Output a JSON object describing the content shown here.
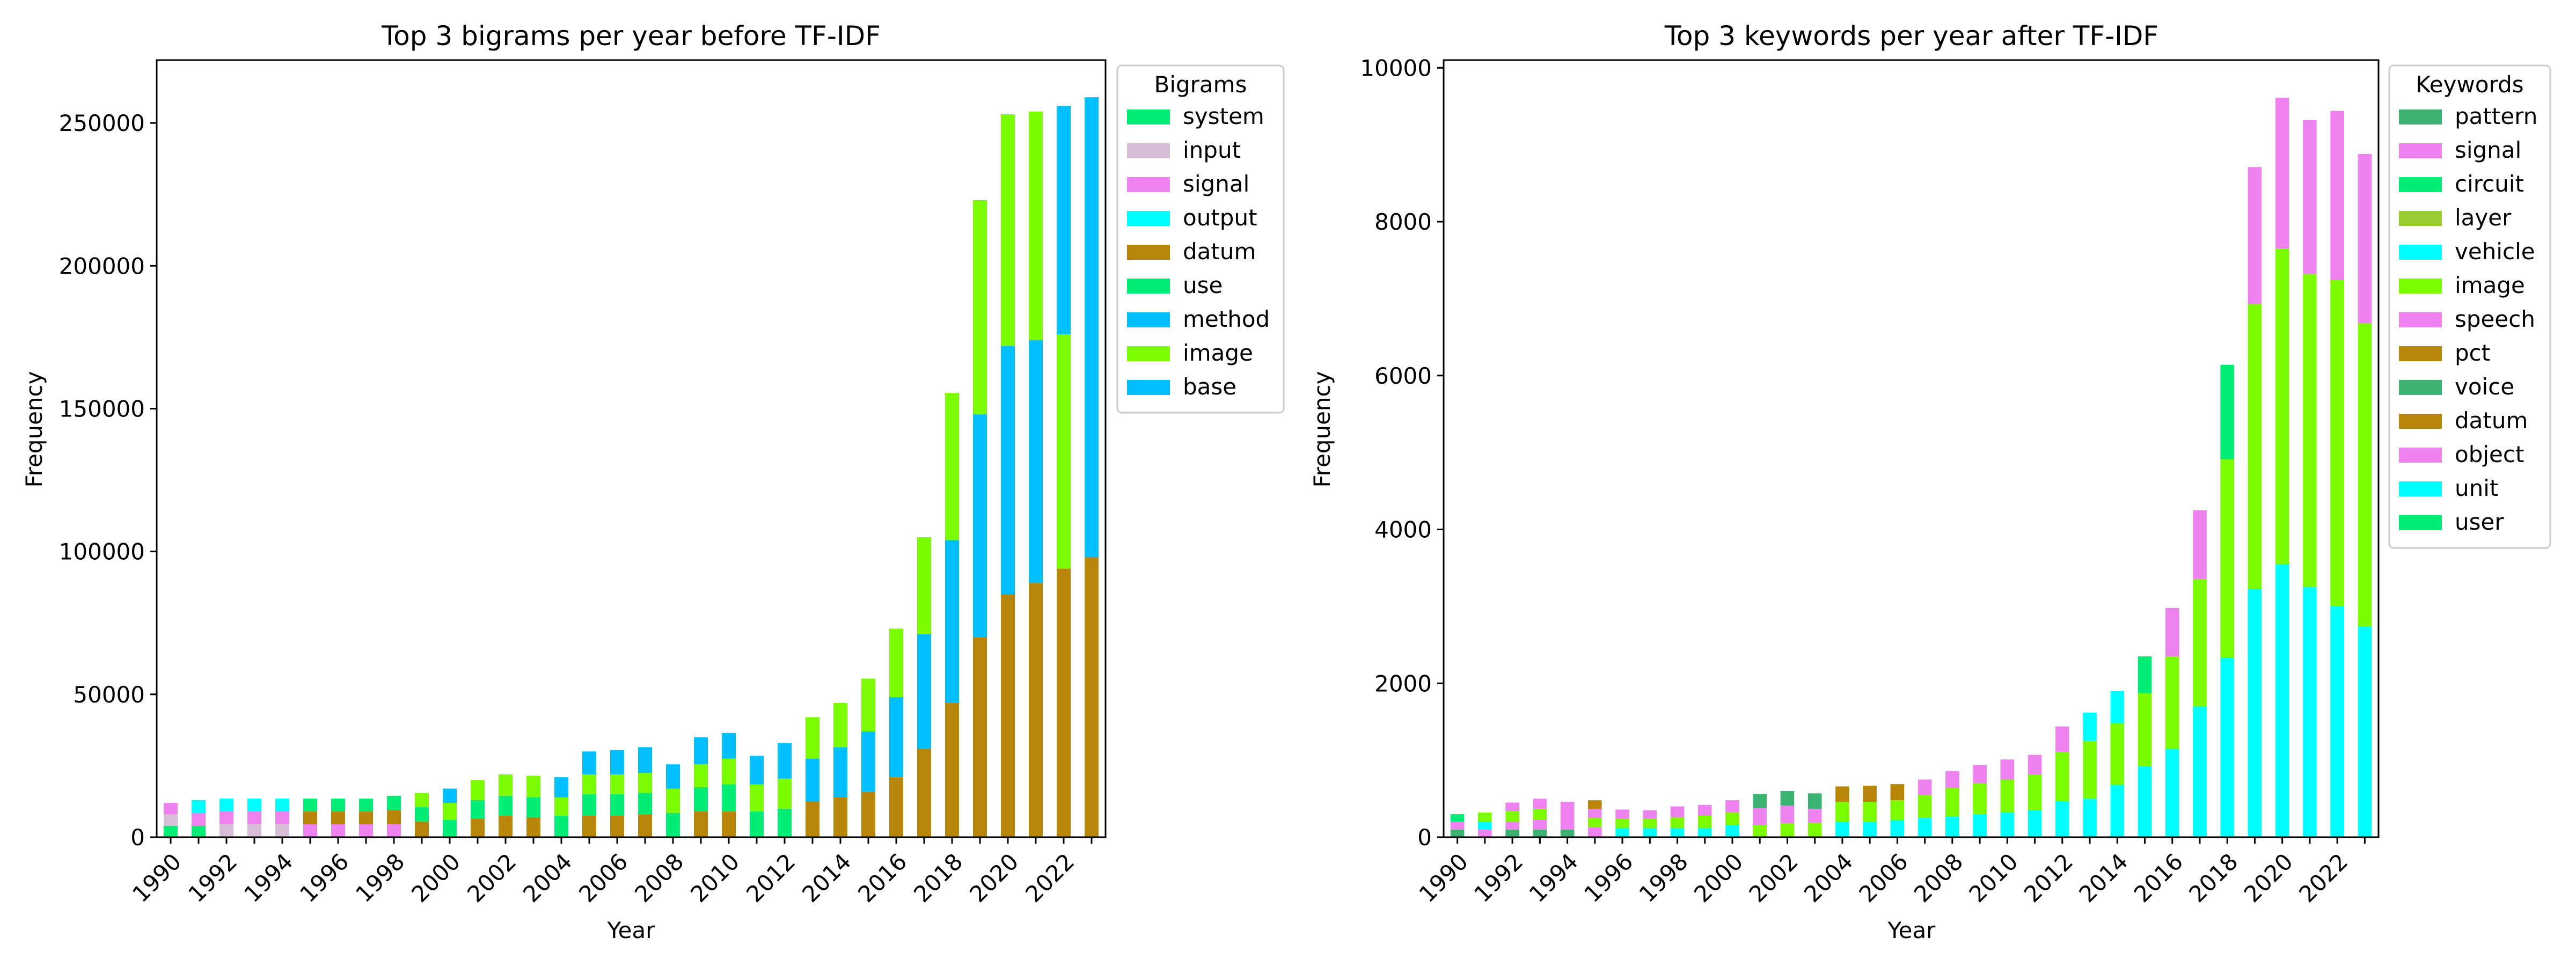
{
  "chart_data": [
    {
      "type": "bar",
      "stacked": true,
      "title": "Top 3 bigrams per year before TF-IDF",
      "xlabel": "Year",
      "ylabel": "Frequency",
      "ylim": [
        0,
        272000
      ],
      "yticks": [
        0,
        50000,
        100000,
        150000,
        200000,
        250000
      ],
      "categories": [
        1990,
        1991,
        1992,
        1993,
        1994,
        1995,
        1996,
        1997,
        1998,
        1999,
        2000,
        2001,
        2002,
        2003,
        2004,
        2005,
        2006,
        2007,
        2008,
        2009,
        2010,
        2011,
        2012,
        2013,
        2014,
        2015,
        2016,
        2017,
        2018,
        2019,
        2020,
        2021,
        2022,
        2023
      ],
      "xtick_labels": [
        "1990",
        "1992",
        "1994",
        "1996",
        "1998",
        "2000",
        "2002",
        "2004",
        "2006",
        "2008",
        "2010",
        "2012",
        "2014",
        "2016",
        "2018",
        "2020",
        "2022"
      ],
      "legend": {
        "title": "Bigrams",
        "placement": "upper-right-outside"
      },
      "series": [
        {
          "name": "system",
          "color": "#00EE76",
          "values": [
            4000,
            4000,
            0,
            0,
            0,
            0,
            0,
            0,
            0,
            0,
            0,
            0,
            0,
            0,
            0,
            0,
            0,
            0,
            0,
            0,
            0,
            0,
            0,
            0,
            0,
            0,
            0,
            0,
            0,
            0,
            0,
            0,
            0,
            0
          ]
        },
        {
          "name": "input",
          "color": "#D8BFD8",
          "values": [
            4000,
            0,
            4500,
            4500,
            4500,
            0,
            0,
            0,
            0,
            0,
            0,
            0,
            0,
            0,
            0,
            0,
            0,
            0,
            0,
            0,
            0,
            0,
            0,
            0,
            0,
            0,
            0,
            0,
            0,
            0,
            0,
            0,
            0,
            0
          ]
        },
        {
          "name": "signal",
          "color": "#EE82EE",
          "values": [
            4000,
            4500,
            4500,
            4500,
            4500,
            4500,
            4500,
            4500,
            4500,
            0,
            0,
            0,
            0,
            0,
            0,
            0,
            0,
            0,
            0,
            0,
            0,
            0,
            0,
            0,
            0,
            0,
            0,
            0,
            0,
            0,
            0,
            0,
            0,
            0
          ]
        },
        {
          "name": "output",
          "color": "#00FFFF",
          "values": [
            0,
            4500,
            4500,
            4500,
            4500,
            0,
            0,
            0,
            0,
            0,
            0,
            0,
            0,
            0,
            0,
            0,
            0,
            0,
            0,
            0,
            0,
            0,
            0,
            0,
            0,
            0,
            0,
            0,
            0,
            0,
            0,
            0,
            0,
            0
          ]
        },
        {
          "name": "datum",
          "color": "#B8860B",
          "values": [
            0,
            0,
            0,
            0,
            0,
            4500,
            4500,
            4500,
            5000,
            5500,
            0,
            6500,
            7500,
            7000,
            0,
            7500,
            7500,
            8000,
            0,
            9000,
            9000,
            0,
            0,
            12500,
            14000,
            16000,
            21000,
            31000,
            47000,
            70000,
            85000,
            89000,
            94000,
            98000
          ]
        },
        {
          "name": "use",
          "color": "#00EE76",
          "values": [
            0,
            0,
            0,
            0,
            0,
            4500,
            4500,
            4500,
            5000,
            5000,
            6000,
            6500,
            7000,
            7000,
            7500,
            7500,
            7500,
            7500,
            8500,
            8500,
            9500,
            9000,
            10000,
            0,
            0,
            0,
            0,
            0,
            0,
            0,
            0,
            0,
            0,
            0
          ]
        },
        {
          "name": "method",
          "color": "#00BFFF",
          "values": [
            0,
            0,
            0,
            0,
            0,
            0,
            0,
            0,
            0,
            0,
            0,
            0,
            0,
            0,
            0,
            0,
            0,
            0,
            0,
            0,
            0,
            0,
            0,
            15000,
            17500,
            21000,
            28000,
            40000,
            57000,
            78000,
            87000,
            85000,
            0,
            161000
          ]
        },
        {
          "name": "image",
          "color": "#7CFC00",
          "values": [
            0,
            0,
            0,
            0,
            0,
            0,
            0,
            0,
            0,
            5000,
            6000,
            7000,
            7500,
            7500,
            6500,
            7000,
            7000,
            7000,
            8500,
            8000,
            9000,
            9500,
            10500,
            14500,
            15500,
            18500,
            24000,
            34000,
            51500,
            75000,
            81000,
            80000,
            82000,
            0
          ]
        },
        {
          "name": "base",
          "color": "#00BFFF",
          "values": [
            0,
            0,
            0,
            0,
            0,
            0,
            0,
            0,
            0,
            0,
            5000,
            0,
            0,
            0,
            7000,
            8000,
            8500,
            9000,
            8500,
            9500,
            9000,
            10000,
            12500,
            0,
            0,
            0,
            0,
            0,
            0,
            0,
            0,
            0,
            80000,
            0
          ]
        }
      ]
    },
    {
      "type": "bar",
      "stacked": true,
      "title": "Top 3 keywords per year after TF-IDF",
      "xlabel": "Year",
      "ylabel": "Frequency",
      "ylim": [
        0,
        10100
      ],
      "yticks": [
        0,
        2000,
        4000,
        6000,
        8000,
        10000
      ],
      "categories": [
        1990,
        1991,
        1992,
        1993,
        1994,
        1995,
        1996,
        1997,
        1998,
        1999,
        2000,
        2001,
        2002,
        2003,
        2004,
        2005,
        2006,
        2007,
        2008,
        2009,
        2010,
        2011,
        2012,
        2013,
        2014,
        2015,
        2016,
        2017,
        2018,
        2019,
        2020,
        2021,
        2022,
        2023
      ],
      "xtick_labels": [
        "1990",
        "1992",
        "1994",
        "1996",
        "1998",
        "2000",
        "2002",
        "2004",
        "2006",
        "2008",
        "2010",
        "2012",
        "2014",
        "2016",
        "2018",
        "2020",
        "2022"
      ],
      "legend": {
        "title": "Keywords",
        "placement": "upper-right-outside"
      },
      "series": [
        {
          "name": "pattern",
          "color": "#3CB371",
          "values": [
            100,
            0,
            100,
            100,
            100,
            0,
            0,
            0,
            0,
            0,
            0,
            0,
            0,
            0,
            0,
            0,
            0,
            0,
            0,
            0,
            0,
            0,
            0,
            0,
            0,
            0,
            0,
            0,
            0,
            0,
            0,
            0,
            0,
            0
          ]
        },
        {
          "name": "signal",
          "color": "#EE82EE",
          "values": [
            100,
            100,
            100,
            130,
            130,
            130,
            0,
            0,
            0,
            0,
            0,
            0,
            0,
            0,
            0,
            0,
            0,
            0,
            0,
            0,
            0,
            0,
            0,
            0,
            0,
            0,
            0,
            0,
            0,
            0,
            0,
            0,
            0,
            0
          ]
        },
        {
          "name": "circuit",
          "color": "#00EE76",
          "values": [
            100,
            0,
            0,
            0,
            0,
            0,
            0,
            0,
            0,
            0,
            0,
            0,
            0,
            0,
            0,
            0,
            0,
            0,
            0,
            0,
            0,
            0,
            0,
            0,
            0,
            0,
            0,
            0,
            0,
            0,
            0,
            0,
            0,
            0
          ]
        },
        {
          "name": "layer",
          "color": "#9ACD32",
          "values": [
            0,
            0,
            0,
            0,
            0,
            0,
            0,
            0,
            0,
            0,
            0,
            0,
            0,
            0,
            0,
            0,
            0,
            0,
            0,
            0,
            0,
            0,
            0,
            0,
            0,
            0,
            0,
            0,
            0,
            0,
            0,
            0,
            0,
            0
          ]
        },
        {
          "name": "vehicle",
          "color": "#00FFFF",
          "values": [
            0,
            100,
            0,
            0,
            0,
            0,
            120,
            120,
            120,
            120,
            160,
            0,
            0,
            0,
            200,
            200,
            220,
            250,
            270,
            300,
            320,
            350,
            470,
            500,
            680,
            920,
            1150,
            1700,
            2330,
            3230,
            3550,
            3250,
            3000,
            2740
          ]
        },
        {
          "name": "image",
          "color": "#7CFC00",
          "values": [
            0,
            120,
            140,
            140,
            0,
            120,
            120,
            120,
            140,
            160,
            160,
            160,
            180,
            190,
            260,
            260,
            260,
            300,
            370,
            400,
            430,
            460,
            640,
            750,
            800,
            950,
            1200,
            1650,
            2580,
            3700,
            4100,
            4070,
            4240,
            3940
          ]
        },
        {
          "name": "speech",
          "color": "#EE82EE",
          "values": [
            0,
            0,
            110,
            130,
            230,
            120,
            120,
            110,
            140,
            140,
            160,
            220,
            230,
            180,
            0,
            0,
            0,
            0,
            0,
            0,
            0,
            0,
            0,
            0,
            0,
            0,
            0,
            0,
            0,
            0,
            0,
            0,
            0,
            0
          ]
        },
        {
          "name": "pct",
          "color": "#B8860B",
          "values": [
            0,
            0,
            0,
            0,
            0,
            110,
            0,
            0,
            0,
            0,
            0,
            0,
            0,
            0,
            0,
            0,
            0,
            0,
            0,
            0,
            0,
            0,
            0,
            0,
            0,
            0,
            0,
            0,
            0,
            0,
            0,
            0,
            0,
            0
          ]
        },
        {
          "name": "voice",
          "color": "#3CB371",
          "values": [
            0,
            0,
            0,
            0,
            0,
            0,
            0,
            0,
            0,
            0,
            0,
            180,
            190,
            200,
            0,
            0,
            0,
            0,
            0,
            0,
            0,
            0,
            0,
            0,
            0,
            0,
            0,
            0,
            0,
            0,
            0,
            0,
            0,
            0
          ]
        },
        {
          "name": "datum",
          "color": "#B8860B",
          "values": [
            0,
            0,
            0,
            0,
            0,
            0,
            0,
            0,
            0,
            0,
            0,
            0,
            0,
            0,
            200,
            210,
            210,
            0,
            0,
            0,
            0,
            0,
            0,
            0,
            0,
            0,
            0,
            0,
            0,
            0,
            0,
            0,
            0,
            0
          ]
        },
        {
          "name": "object",
          "color": "#EE82EE",
          "values": [
            0,
            0,
            0,
            0,
            0,
            0,
            0,
            0,
            0,
            0,
            0,
            0,
            0,
            0,
            0,
            0,
            0,
            200,
            220,
            240,
            260,
            260,
            330,
            0,
            0,
            0,
            630,
            900,
            0,
            1780,
            1960,
            2000,
            2200,
            2200
          ]
        },
        {
          "name": "unit",
          "color": "#00FFFF",
          "values": [
            0,
            0,
            0,
            0,
            0,
            0,
            0,
            0,
            0,
            0,
            0,
            0,
            0,
            0,
            0,
            0,
            0,
            0,
            0,
            0,
            0,
            0,
            0,
            370,
            420,
            0,
            0,
            0,
            0,
            0,
            0,
            0,
            0,
            0
          ]
        },
        {
          "name": "user",
          "color": "#00EE76",
          "values": [
            0,
            0,
            0,
            0,
            0,
            0,
            0,
            0,
            0,
            0,
            0,
            0,
            0,
            0,
            0,
            0,
            0,
            0,
            0,
            0,
            0,
            0,
            0,
            0,
            0,
            480,
            0,
            0,
            1230,
            0,
            0,
            0,
            0,
            0
          ]
        }
      ]
    }
  ]
}
